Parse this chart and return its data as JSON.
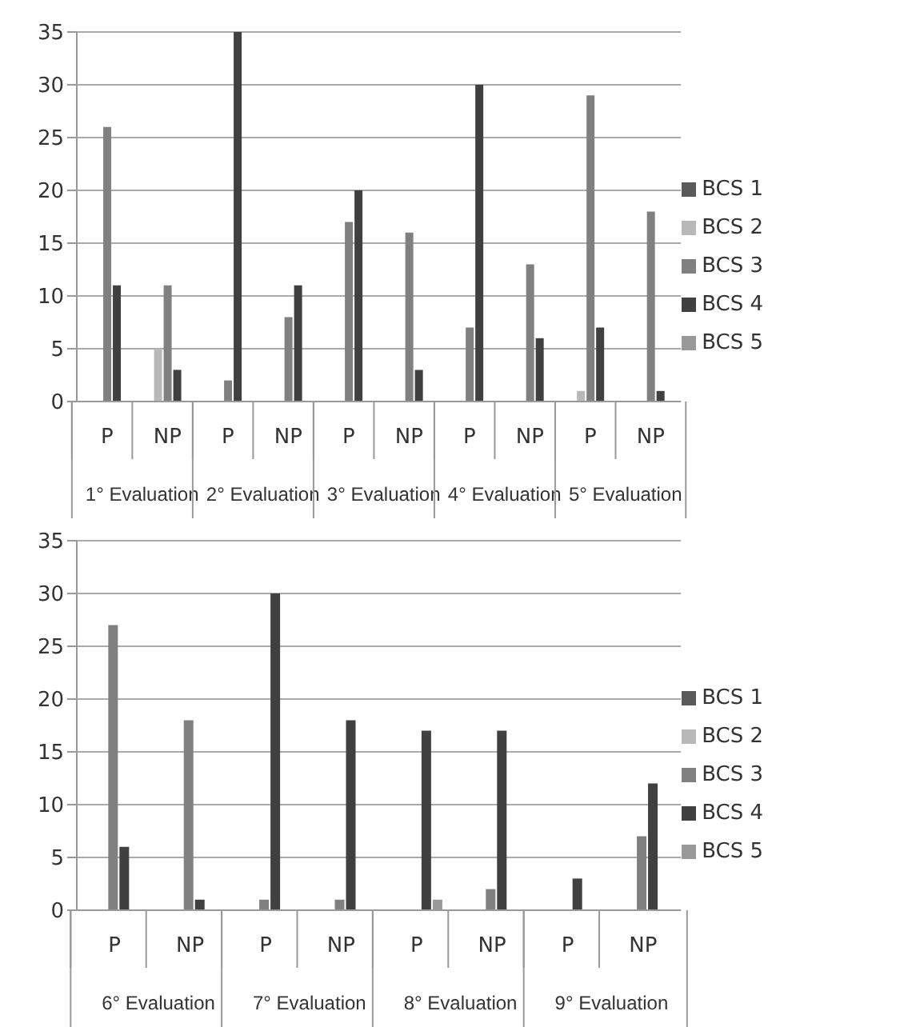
{
  "chart_data": [
    {
      "type": "bar",
      "categories": [
        "P",
        "NP",
        "P",
        "NP",
        "P",
        "NP",
        "P",
        "NP",
        "P",
        "NP"
      ],
      "annotations": [
        "1° Evaluation",
        "2° Evaluation",
        "3° Evaluation",
        "4° Evaluation",
        "5° Evaluation"
      ],
      "series": [
        {
          "name": "BCS 1",
          "color": "#5a5a5a",
          "values": [
            0,
            0,
            0,
            0,
            0,
            0,
            0,
            0,
            0,
            0
          ]
        },
        {
          "name": "BCS 2",
          "color": "#b8b8b8",
          "values": [
            0,
            5,
            0,
            0,
            0,
            0,
            0,
            0,
            1,
            0
          ]
        },
        {
          "name": "BCS 3",
          "color": "#808080",
          "values": [
            26,
            11,
            2,
            8,
            17,
            16,
            7,
            13,
            29,
            18
          ]
        },
        {
          "name": "BCS 4",
          "color": "#404040",
          "values": [
            11,
            3,
            35,
            11,
            20,
            3,
            30,
            6,
            7,
            1
          ]
        },
        {
          "name": "BCS 5",
          "color": "#999999",
          "values": [
            0,
            0,
            0,
            0,
            0,
            0,
            0,
            0,
            0,
            0
          ]
        }
      ],
      "ylim": [
        0,
        35
      ],
      "yticks": [
        0,
        5,
        10,
        15,
        20,
        25,
        30,
        35
      ],
      "grid": "y",
      "legend": "right"
    },
    {
      "type": "bar",
      "categories": [
        "P",
        "NP",
        "P",
        "NP",
        "P",
        "NP",
        "P",
        "NP"
      ],
      "annotations": [
        "6° Evaluation",
        "7° Evaluation",
        "8° Evaluation",
        "9° Evaluation"
      ],
      "series": [
        {
          "name": "BCS 1",
          "color": "#5a5a5a",
          "values": [
            0,
            0,
            0,
            0,
            0,
            0,
            0,
            0
          ]
        },
        {
          "name": "BCS 2",
          "color": "#b8b8b8",
          "values": [
            0,
            0,
            0,
            0,
            0,
            0,
            0,
            0
          ]
        },
        {
          "name": "BCS 3",
          "color": "#808080",
          "values": [
            27,
            18,
            1,
            1,
            0,
            2,
            0,
            7
          ]
        },
        {
          "name": "BCS 4",
          "color": "#404040",
          "values": [
            6,
            1,
            30,
            18,
            17,
            17,
            3,
            12
          ]
        },
        {
          "name": "BCS 5",
          "color": "#999999",
          "values": [
            0,
            0,
            0,
            0,
            1,
            0,
            0,
            0
          ]
        }
      ],
      "ylim": [
        0,
        35
      ],
      "yticks": [
        0,
        5,
        10,
        15,
        20,
        25,
        30,
        35
      ],
      "grid": "y",
      "legend": "right"
    }
  ]
}
